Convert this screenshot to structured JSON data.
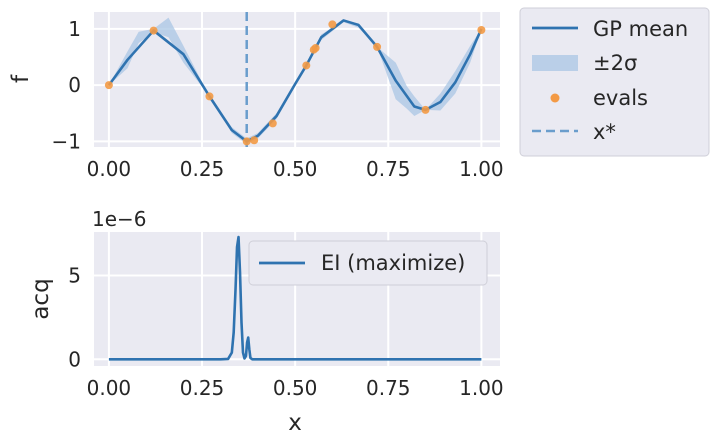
{
  "chart_data": [
    {
      "type": "line",
      "ylabel": "f",
      "xlim": [
        -0.04,
        1.05
      ],
      "ylim": [
        -1.1,
        1.3
      ],
      "xticks": [
        0.0,
        0.25,
        0.5,
        0.75,
        1.0
      ],
      "xtick_labels": [
        "0.00",
        "0.25",
        "0.50",
        "0.75",
        "1.00"
      ],
      "yticks": [
        -1,
        0,
        1
      ],
      "ytick_labels": [
        "−1",
        "0",
        "1"
      ],
      "grid": true,
      "legend_position": "outside-top-right",
      "series": [
        {
          "name": "GP mean",
          "kind": "line",
          "x": [
            0.0,
            0.05,
            0.12,
            0.2,
            0.27,
            0.33,
            0.37,
            0.4,
            0.45,
            0.5,
            0.53,
            0.57,
            0.63,
            0.67,
            0.72,
            0.77,
            0.82,
            0.85,
            0.89,
            0.93,
            0.97,
            1.0
          ],
          "y": [
            0.0,
            0.45,
            0.97,
            0.55,
            -0.2,
            -0.8,
            -1.0,
            -0.9,
            -0.55,
            0.02,
            0.35,
            0.85,
            1.15,
            1.07,
            0.68,
            0.08,
            -0.38,
            -0.44,
            -0.3,
            0.05,
            0.55,
            1.0
          ]
        },
        {
          "name": "±2σ",
          "kind": "band",
          "x": [
            0.0,
            0.05,
            0.08,
            0.12,
            0.16,
            0.2,
            0.27,
            0.33,
            0.37,
            0.4,
            0.45,
            0.5,
            0.53,
            0.57,
            0.63,
            0.67,
            0.72,
            0.77,
            0.8,
            0.82,
            0.85,
            0.89,
            0.93,
            0.97,
            1.0
          ],
          "upper": [
            0.0,
            0.6,
            0.95,
            1.0,
            1.2,
            0.7,
            -0.2,
            -0.75,
            -0.95,
            -0.85,
            -0.5,
            0.05,
            0.35,
            0.9,
            1.15,
            1.1,
            0.68,
            0.4,
            -0.02,
            -0.2,
            -0.44,
            -0.15,
            0.25,
            0.7,
            1.0
          ],
          "lower": [
            0.0,
            0.3,
            0.75,
            0.94,
            0.85,
            0.4,
            -0.2,
            -0.85,
            -1.05,
            -0.95,
            -0.6,
            0.0,
            0.35,
            0.8,
            1.12,
            1.02,
            0.68,
            -0.25,
            -0.42,
            -0.55,
            -0.44,
            -0.45,
            -0.15,
            0.4,
            1.0
          ]
        },
        {
          "name": "evals",
          "kind": "scatter",
          "x": [
            0.0,
            0.12,
            0.27,
            0.37,
            0.39,
            0.44,
            0.53,
            0.55,
            0.555,
            0.6,
            0.72,
            0.85,
            1.0
          ],
          "y": [
            0.0,
            0.97,
            -0.2,
            -1.0,
            -0.98,
            -0.68,
            0.35,
            0.63,
            0.66,
            1.08,
            0.68,
            -0.44,
            0.98
          ]
        },
        {
          "name": "x*",
          "kind": "vline",
          "x": 0.37
        }
      ],
      "colors": {
        "line": "#2f73b0",
        "band": "#a9c6e4",
        "points": "#f39a45",
        "vline": "#6a9dcc"
      }
    },
    {
      "type": "line",
      "xlabel": "x",
      "ylabel": "acq",
      "scale_label": "1e−6",
      "xlim": [
        -0.04,
        1.05
      ],
      "ylim": [
        -0.4,
        7.6
      ],
      "xticks": [
        0.0,
        0.25,
        0.5,
        0.75,
        1.0
      ],
      "xtick_labels": [
        "0.00",
        "0.25",
        "0.50",
        "0.75",
        "1.00"
      ],
      "yticks": [
        0,
        5
      ],
      "ytick_labels": [
        "0",
        "5"
      ],
      "grid": true,
      "legend_position": "upper-right",
      "series": [
        {
          "name": "EI (maximize)",
          "x": [
            0.0,
            0.3,
            0.32,
            0.33,
            0.335,
            0.34,
            0.344,
            0.348,
            0.352,
            0.356,
            0.36,
            0.364,
            0.368,
            0.371,
            0.374,
            0.377,
            0.38,
            0.385,
            0.4,
            1.0
          ],
          "y": [
            0,
            0,
            0.02,
            0.4,
            1.6,
            4.2,
            6.7,
            7.3,
            5.2,
            2.2,
            0.4,
            0.05,
            0.2,
            1.0,
            1.3,
            0.6,
            0.08,
            0,
            0,
            0
          ]
        }
      ],
      "colors": {
        "line": "#2f73b0"
      }
    }
  ]
}
